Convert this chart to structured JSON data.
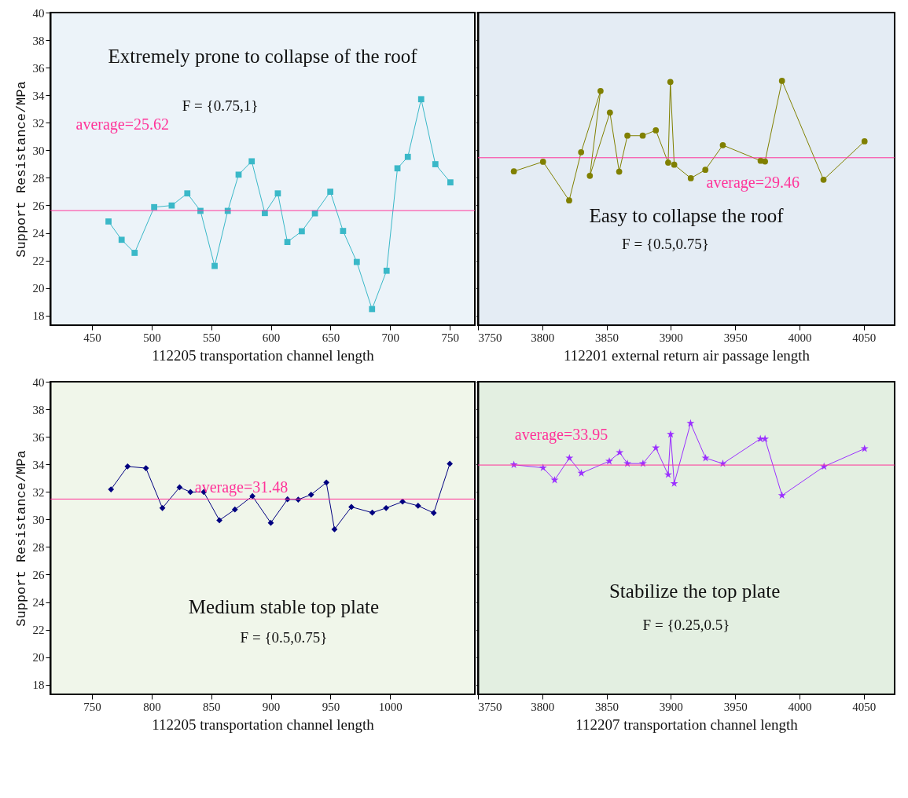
{
  "chart_data": [
    {
      "type": "line",
      "xlabel": "112205 transportation channel length",
      "ylabel": "Support Resistance/MPa",
      "marker": "square",
      "line_style": "solid",
      "xlim": [
        415,
        771
      ],
      "xticks": [
        450,
        500,
        550,
        600,
        650,
        700,
        750
      ],
      "ylim": [
        17.3,
        40
      ],
      "yticks": [
        18,
        20,
        22,
        24,
        26,
        28,
        30,
        32,
        34,
        36,
        38,
        40
      ],
      "x": [
        463.8,
        474.8,
        485.7,
        502.1,
        516.8,
        529.9,
        540.9,
        552.8,
        563.8,
        572.9,
        583.9,
        594.9,
        605.8,
        613.8,
        625.9,
        636.9,
        649.8,
        660.5,
        672,
        684.8,
        697,
        706.1,
        714.8,
        726,
        737.9,
        750.5
      ],
      "series": [
        {
          "color": "#3ab8c8",
          "values": [
            24.83,
            23.5,
            22.55,
            25.87,
            25.99,
            26.87,
            25.6,
            21.6,
            25.6,
            28.23,
            29.2,
            25.44,
            26.87,
            23.34,
            24.12,
            25.42,
            26.99,
            24.14,
            21.89,
            18.47,
            21.25,
            28.69,
            29.52,
            33.71,
            28.99,
            27.67
          ]
        }
      ],
      "ref_lines": [
        {
          "axis": "y",
          "value": 25.62,
          "label": "average=25.62",
          "color": "#ff3399"
        }
      ],
      "annotations": [
        "Extremely prone to collapse of the roof",
        "F = {0.75,1}"
      ]
    },
    {
      "type": "line",
      "xlabel": "112201 external return air passage length",
      "marker": "circle",
      "line_style": "solid",
      "tick_labels": "x",
      "xlim": [
        3750,
        4074
      ],
      "xticks": [
        3750,
        3800,
        3850,
        3900,
        3950,
        4000,
        4050
      ],
      "ylim": [
        17.3,
        40
      ],
      "yticks": [
        18,
        20,
        22,
        24,
        26,
        28,
        30,
        32,
        34,
        36,
        38,
        40
      ],
      "x": [
        3777.9,
        3800.6,
        3820.9,
        3830.2,
        3845.3,
        3837,
        3852.6,
        3859.8,
        3866.2,
        3878.1,
        3888.3,
        3897.9,
        3899.6,
        3902.6,
        3915.5,
        3926.8,
        3940.4,
        3969.8,
        3973.2,
        3986.4,
        4018.7,
        4050.6
      ],
      "series": [
        {
          "color": "#808000",
          "values": [
            28.47,
            29.17,
            26.36,
            29.86,
            34.31,
            28.15,
            32.74,
            28.45,
            31.06,
            31.06,
            31.45,
            29.1,
            34.96,
            28.95,
            27.97,
            28.58,
            30.37,
            29.24,
            29.19,
            35.04,
            27.86,
            30.65
          ]
        }
      ],
      "ref_lines": [
        {
          "axis": "y",
          "value": 29.46,
          "label": "average=29.46",
          "color": "#ff3399"
        }
      ],
      "annotations": [
        "Easy to collapse the roof",
        "F = {0.5,0.75}"
      ]
    },
    {
      "type": "line",
      "xlabel": "112205 transportation channel length",
      "ylabel": "Support Resistance/MPa",
      "marker": "diamond",
      "line_style": "solid",
      "xlim": [
        715,
        1071
      ],
      "xticks": [
        750,
        800,
        850,
        900,
        950,
        1000
      ],
      "ylim": [
        17.3,
        40
      ],
      "yticks": [
        18,
        20,
        22,
        24,
        26,
        28,
        30,
        32,
        34,
        36,
        38,
        40
      ],
      "x": [
        765.9,
        779.8,
        795.2,
        809,
        823.4,
        832.5,
        843.7,
        856.8,
        869.8,
        884.5,
        899.9,
        913.9,
        922.9,
        933.7,
        946.5,
        953.3,
        967.5,
        985,
        996.6,
        1010.4,
        1023.4,
        1036.5,
        1050
      ],
      "series": [
        {
          "color": "#000080",
          "values": [
            32.18,
            33.85,
            33.72,
            30.83,
            32.33,
            31.99,
            31.99,
            29.94,
            30.72,
            31.69,
            29.75,
            31.46,
            31.44,
            31.8,
            32.68,
            29.28,
            30.91,
            30.49,
            30.83,
            31.29,
            30.99,
            30.47,
            34.04
          ]
        }
      ],
      "ref_lines": [
        {
          "axis": "y",
          "value": 31.48,
          "label": "average=31.48",
          "color": "#ff3399"
        }
      ],
      "annotations": [
        "Medium stable top plate",
        "F = {0.5,0.75}"
      ]
    },
    {
      "type": "line",
      "xlabel": "112207 transportation channel length",
      "marker": "star",
      "line_style": "solid",
      "tick_labels": "x",
      "xlim": [
        3750,
        4074
      ],
      "xticks": [
        3750,
        3800,
        3850,
        3900,
        3950,
        4000,
        4050
      ],
      "ylim": [
        17.3,
        40
      ],
      "yticks": [
        18,
        20,
        22,
        24,
        26,
        28,
        30,
        32,
        34,
        36,
        38,
        40
      ],
      "x": [
        3777.9,
        3800.6,
        3809.6,
        3821.1,
        3830.4,
        3852.1,
        3860.2,
        3866.2,
        3878.3,
        3888.3,
        3897.9,
        3899.8,
        3902.6,
        3915.3,
        3927,
        3940.4,
        3969.6,
        3973.2,
        3986.4,
        4019.1,
        4050.6
      ],
      "series": [
        {
          "color": "#9b30ff",
          "values": [
            33.97,
            33.75,
            32.86,
            34.46,
            33.36,
            34.23,
            34.86,
            34.06,
            34.06,
            35.2,
            33.25,
            36.18,
            32.61,
            36.98,
            34.46,
            34.05,
            35.85,
            35.85,
            31.74,
            33.84,
            35.14
          ]
        }
      ],
      "ref_lines": [
        {
          "axis": "y",
          "value": 33.95,
          "label": "average=33.95",
          "color": "#ff3399"
        }
      ],
      "annotations": [
        "Stabilize the top plate",
        "F = {0.25,0.5}"
      ]
    }
  ]
}
